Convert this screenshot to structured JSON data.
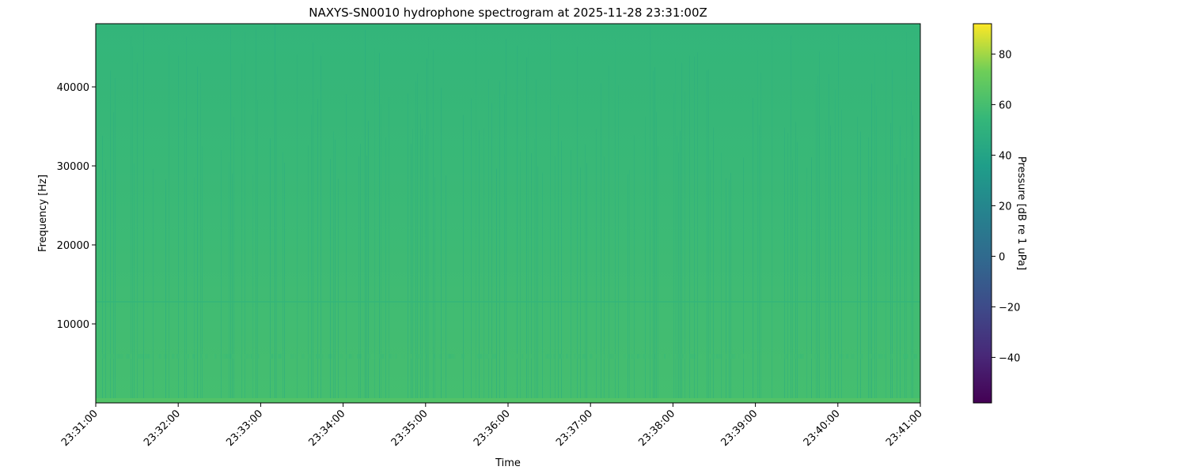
{
  "chart_data": {
    "type": "heatmap",
    "title": "NAXYS-SN0010 hydrophone spectrogram at 2025-11-28 23:31:00Z",
    "xlabel": "Time",
    "ylabel": "Frequency [Hz]",
    "x_ticks": [
      "23:31:00",
      "23:32:00",
      "23:33:00",
      "23:34:00",
      "23:35:00",
      "23:36:00",
      "23:37:00",
      "23:38:00",
      "23:39:00",
      "23:40:00",
      "23:41:00"
    ],
    "xlim": [
      "23:31:00",
      "23:41:00"
    ],
    "y_ticks": [
      10000,
      20000,
      30000,
      40000
    ],
    "ylim": [
      0,
      48000
    ],
    "colorbar": {
      "label": "Pressure [dB re 1 uPa]",
      "colormap": "viridis",
      "range": [
        -58,
        92
      ],
      "ticks": [
        -40,
        -20,
        0,
        20,
        40,
        60,
        80
      ]
    },
    "frequency_profile": {
      "frequency_hz": [
        250,
        2000,
        5700,
        10000,
        12700,
        20000,
        30000,
        40000,
        47000
      ],
      "typical_level_db": [
        64,
        52,
        56,
        51,
        53,
        49,
        47,
        46,
        45
      ]
    },
    "grid": false
  }
}
